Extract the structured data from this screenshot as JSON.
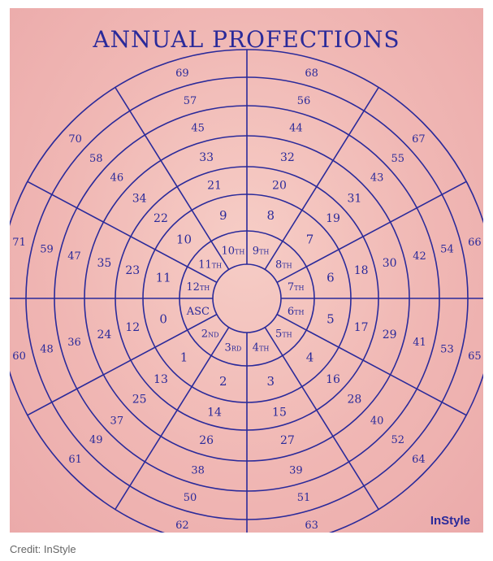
{
  "title": "ANNUAL PROFECTIONS",
  "brand": "InStyle",
  "credit": "Credit: InStyle",
  "colors": {
    "ink": "#2a2a9a",
    "background": "#f3bdb8"
  },
  "inner_labels": [
    "ASC",
    "2ND",
    "3RD",
    "4TH",
    "5TH",
    "6TH",
    "7TH",
    "8TH",
    "9TH",
    "10TH",
    "11TH",
    "12TH"
  ],
  "house_labels": [
    {
      "num": "",
      "suf": "ASC"
    },
    {
      "num": "2",
      "suf": "ND"
    },
    {
      "num": "3",
      "suf": "RD"
    },
    {
      "num": "4",
      "suf": "TH"
    },
    {
      "num": "5",
      "suf": "TH"
    },
    {
      "num": "6",
      "suf": "TH"
    },
    {
      "num": "7",
      "suf": "TH"
    },
    {
      "num": "8",
      "suf": "TH"
    },
    {
      "num": "9",
      "suf": "TH"
    },
    {
      "num": "10",
      "suf": "TH"
    },
    {
      "num": "11",
      "suf": "TH"
    },
    {
      "num": "12",
      "suf": "TH"
    }
  ],
  "age_rings": [
    [
      "0",
      "1",
      "2",
      "3",
      "4",
      "5",
      "6",
      "7",
      "8",
      "9",
      "10",
      "11"
    ],
    [
      "12",
      "13",
      "14",
      "15",
      "16",
      "17",
      "18",
      "19",
      "20",
      "21",
      "22",
      "23"
    ],
    [
      "24",
      "25",
      "26",
      "27",
      "28",
      "29",
      "30",
      "31",
      "32",
      "33",
      "34",
      "35"
    ],
    [
      "36",
      "37",
      "38",
      "39",
      "40",
      "41",
      "42",
      "43",
      "44",
      "45",
      "46",
      "47"
    ],
    [
      "48",
      "49",
      "50",
      "51",
      "52",
      "53",
      "54",
      "55",
      "56",
      "57",
      "58",
      "59"
    ],
    [
      "60",
      "61",
      "62",
      "63",
      "64",
      "65",
      "66",
      "67",
      "68",
      "69",
      "70",
      "71"
    ]
  ]
}
